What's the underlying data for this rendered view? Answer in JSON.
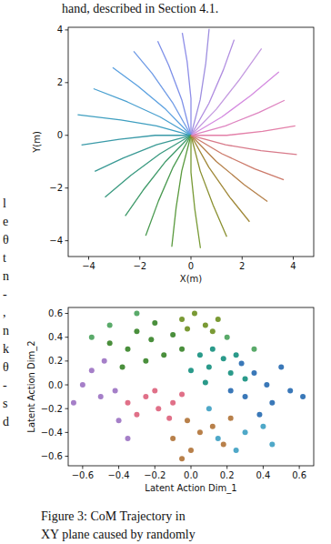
{
  "header": "hand, described in Section 4.1.",
  "margin_text": [
    "l",
    "e",
    "θ",
    "t",
    "n",
    "-",
    ",",
    "n",
    "k",
    "θ",
    "-",
    "s",
    "d"
  ],
  "chart_data": [
    {
      "type": "line",
      "xlabel": "X(m)",
      "ylabel": "Y(m)",
      "xlim": [
        -4.8,
        4.8
      ],
      "ylim": [
        -4.6,
        4.1
      ],
      "xticks": [
        {
          "value": -4,
          "label": "−4"
        },
        {
          "value": -2,
          "label": "−2"
        },
        0,
        2,
        4
      ],
      "yticks": [
        {
          "value": -4,
          "label": "−4"
        },
        {
          "value": -2,
          "label": "−2"
        },
        0,
        2,
        4
      ],
      "series": [
        {
          "color": "#e37fa8",
          "x": [
            0,
            1.4,
            2.8,
            4.08
          ],
          "values": [
            0,
            0,
            0.15,
            0.36
          ]
        },
        {
          "color": "#de84c0",
          "x": [
            0,
            1.35,
            2.66,
            3.66
          ],
          "values": [
            0,
            0.36,
            0.87,
            1.33
          ]
        },
        {
          "color": "#d48be0",
          "x": [
            0,
            1.21,
            2.35,
            3.44
          ],
          "values": [
            0,
            0.7,
            1.52,
            2.41
          ]
        },
        {
          "color": "#c49ae0",
          "x": [
            0,
            0.99,
            1.87,
            2.76
          ],
          "values": [
            0,
            0.99,
            2.08,
            3.29
          ]
        },
        {
          "color": "#b08de0",
          "x": [
            0,
            0.7,
            1.27,
            1.69
          ],
          "values": [
            0,
            1.21,
            2.49,
            3.63
          ]
        },
        {
          "color": "#9f8fe0",
          "x": [
            0,
            0.36,
            0.58,
            0.71
          ],
          "values": [
            0,
            1.35,
            2.74,
            4.04
          ]
        },
        {
          "color": "#8e8ee8",
          "x": [
            0,
            0,
            -0.15,
            -0.34
          ],
          "values": [
            0,
            1.4,
            2.8,
            3.89
          ]
        },
        {
          "color": "#7e90e8",
          "x": [
            0,
            -0.36,
            -0.87,
            -1.3
          ],
          "values": [
            0,
            1.35,
            2.66,
            3.57
          ]
        },
        {
          "color": "#6f9be6",
          "x": [
            0,
            -0.7,
            -1.52,
            -2.24
          ],
          "values": [
            0,
            1.21,
            2.35,
            3.19
          ]
        },
        {
          "color": "#5aa0e0",
          "x": [
            0,
            -0.99,
            -2.08,
            -3.06
          ],
          "values": [
            0,
            0.99,
            1.87,
            2.57
          ]
        },
        {
          "color": "#4aa0d0",
          "x": [
            0,
            -1.21,
            -2.49,
            -3.81
          ],
          "values": [
            0,
            0.7,
            1.27,
            1.77
          ]
        },
        {
          "color": "#3f9fc0",
          "x": [
            0,
            -1.35,
            -2.74,
            -4.43
          ],
          "values": [
            0,
            0.36,
            0.58,
            0.78
          ]
        },
        {
          "color": "#3a9aa8",
          "x": [
            0,
            -1.4,
            -2.8,
            -4.28
          ],
          "values": [
            0,
            0,
            -0.15,
            -0.37
          ]
        },
        {
          "color": "#3a9a95",
          "x": [
            0,
            -1.35,
            -2.66,
            -3.76
          ],
          "values": [
            0,
            -0.36,
            -0.87,
            -1.37
          ]
        },
        {
          "color": "#3a9a80",
          "x": [
            0,
            -1.21,
            -2.35,
            -3.36
          ],
          "values": [
            0,
            -0.7,
            -1.52,
            -2.35
          ]
        },
        {
          "color": "#3f9a6a",
          "x": [
            0,
            -0.99,
            -1.87,
            -2.57
          ],
          "values": [
            0,
            -0.99,
            -2.08,
            -3.06
          ]
        },
        {
          "color": "#4a9a50",
          "x": [
            0,
            -0.7,
            -1.27,
            -1.77
          ],
          "values": [
            0,
            -1.21,
            -2.49,
            -3.81
          ]
        },
        {
          "color": "#5a9a3e",
          "x": [
            0,
            -0.36,
            -0.58,
            -0.75
          ],
          "values": [
            0,
            -1.35,
            -2.74,
            -4.23
          ]
        },
        {
          "color": "#789a35",
          "x": [
            0,
            0,
            0.15,
            0.37
          ],
          "values": [
            0,
            -1.4,
            -2.8,
            -4.28
          ]
        },
        {
          "color": "#8a9030",
          "x": [
            0,
            0.36,
            0.87,
            1.4
          ],
          "values": [
            0,
            -1.35,
            -2.66,
            -3.85
          ]
        },
        {
          "color": "#a08838",
          "x": [
            0,
            0.7,
            1.52,
            2.29
          ],
          "values": [
            0,
            -1.21,
            -2.35,
            -3.28
          ]
        },
        {
          "color": "#b5804a",
          "x": [
            0,
            0.99,
            2.08,
            2.99
          ],
          "values": [
            0,
            -0.99,
            -1.87,
            -2.51
          ]
        },
        {
          "color": "#cc7a6a",
          "x": [
            0,
            1.21,
            2.49,
            3.63
          ],
          "values": [
            0,
            -0.7,
            -1.27,
            -1.69
          ]
        },
        {
          "color": "#d87a8a",
          "x": [
            0,
            1.35,
            2.74,
            4.14
          ],
          "values": [
            0,
            -0.36,
            -0.58,
            -0.73
          ]
        }
      ]
    },
    {
      "type": "scatter",
      "xlabel": "Latent Action Dim_1",
      "ylabel": "Latent Action Dim_2",
      "xlim": [
        -0.68,
        0.68
      ],
      "ylim": [
        -0.68,
        0.65
      ],
      "xticks": [
        {
          "value": -0.6,
          "label": "−0.6"
        },
        {
          "value": -0.4,
          "label": "−0.4"
        },
        {
          "value": -0.2,
          "label": "−0.2"
        },
        {
          "value": 0,
          "label": "0.0"
        },
        0.2,
        0.4,
        0.6
      ],
      "yticks": [
        {
          "value": -0.6,
          "label": "−0.6"
        },
        {
          "value": -0.4,
          "label": "−0.4"
        },
        {
          "value": -0.2,
          "label": "−0.2"
        },
        {
          "value": 0,
          "label": "0.0"
        },
        0.2,
        0.4,
        0.6
      ],
      "series": [
        {
          "color": "#4a8f3c",
          "x": [
            -0.35,
            -0.3,
            -0.22,
            -0.15,
            -0.25,
            -0.38,
            -0.1,
            -0.2,
            -0.45,
            -0.05
          ],
          "values": [
            0.3,
            0.45,
            0.38,
            0.25,
            0.2,
            0.15,
            0.42,
            0.52,
            0.35,
            0.3
          ]
        },
        {
          "color": "#7a9a35",
          "x": [
            0.02,
            -0.05,
            0.08,
            0.12,
            -0.02,
            0.15
          ],
          "values": [
            0.6,
            0.55,
            0.5,
            0.45,
            0.47,
            0.55
          ]
        },
        {
          "color": "#2a9a8a",
          "x": [
            0.05,
            0.1,
            0.18,
            0.22,
            0,
            0.12,
            0.25,
            0.3,
            0.08
          ],
          "values": [
            0.25,
            0.15,
            0.22,
            0.1,
            0.12,
            0.3,
            0.25,
            0.05,
            0.02
          ]
        },
        {
          "color": "#3a78b8",
          "x": [
            0.35,
            0.42,
            0.3,
            0.45,
            0.5,
            0.38,
            0.22,
            0.55,
            0.62,
            0.28
          ],
          "values": [
            0.1,
            0,
            -0.1,
            -0.15,
            0.15,
            -0.25,
            -0.05,
            -0.05,
            -0.1,
            0.18
          ]
        },
        {
          "color": "#e07088",
          "x": [
            -0.25,
            -0.18,
            -0.1,
            -0.3,
            -0.05,
            -0.2,
            -0.12,
            -0.35
          ],
          "values": [
            -0.1,
            -0.2,
            -0.15,
            -0.25,
            -0.08,
            -0.05,
            -0.28,
            -0.15
          ]
        },
        {
          "color": "#b8804a",
          "x": [
            -0.02,
            0.05,
            0.12,
            -0.1,
            0.18,
            0,
            0.22,
            -0.05
          ],
          "values": [
            -0.3,
            -0.4,
            -0.35,
            -0.45,
            -0.5,
            -0.55,
            -0.28,
            -0.62
          ]
        },
        {
          "color": "#a57fc8",
          "x": [
            -0.6,
            -0.5,
            -0.55,
            -0.42,
            -0.48,
            -0.4,
            -0.65,
            -0.35
          ],
          "values": [
            0,
            -0.1,
            0.12,
            -0.05,
            0.2,
            -0.3,
            -0.15,
            -0.45
          ]
        },
        {
          "color": "#4fa8c8",
          "x": [
            0.15,
            0.3,
            0.25,
            0.4,
            0.45,
            0.1
          ],
          "values": [
            -0.45,
            -0.4,
            -0.55,
            -0.35,
            -0.5,
            -0.2
          ]
        },
        {
          "color": "#5aaa6a",
          "x": [
            -0.45,
            -0.3,
            -0.55,
            0.2,
            0.35
          ],
          "values": [
            0.5,
            0.6,
            0.4,
            0.4,
            0.3
          ]
        }
      ]
    }
  ],
  "caption": [
    "Figure 3:  CoM Trajectory in",
    "XY plane caused by randomly"
  ]
}
